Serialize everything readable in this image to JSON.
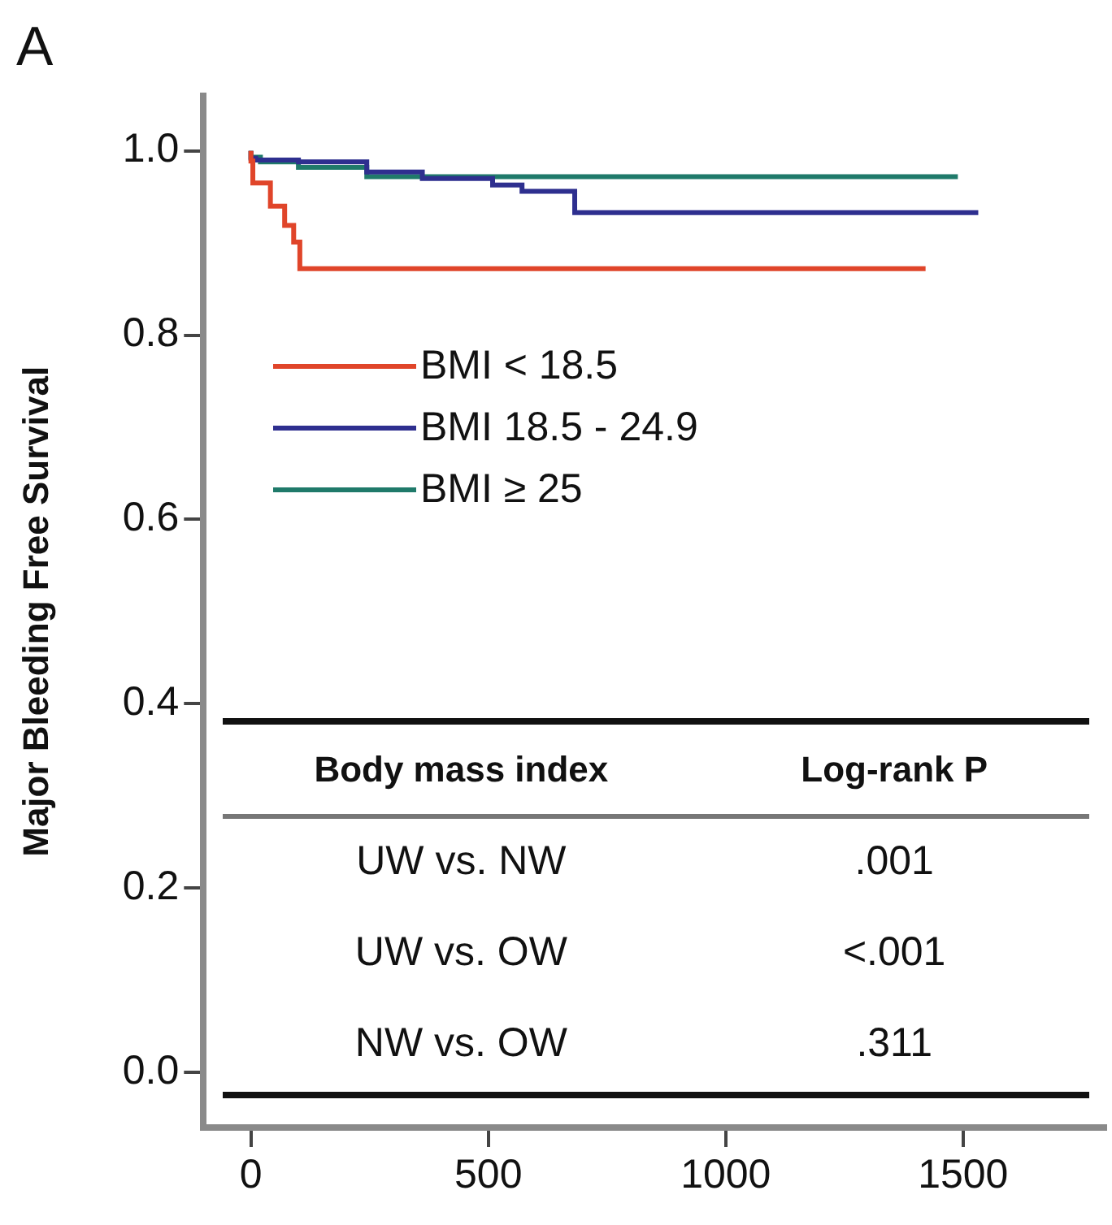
{
  "chart_data": {
    "type": "step",
    "title": "A",
    "ylabel": "Major Bleeding Free Survival",
    "series": [
      {
        "name": "BMI < 18.5",
        "color": "#e0452a",
        "x": [
          0,
          4,
          41,
          71,
          90,
          103,
          177,
          1421
        ],
        "values": [
          1.0,
          0.989,
          0.965,
          0.94,
          0.919,
          0.901,
          0.872,
          0.872
        ]
      },
      {
        "name": "BMI 18.5 - 24.9",
        "color": "#2e2f8f",
        "x": [
          0,
          10,
          100,
          244,
          361,
          509,
          571,
          682,
          780,
          1532
        ],
        "values": [
          1.0,
          0.992,
          0.99,
          0.988,
          0.977,
          0.97,
          0.963,
          0.956,
          0.933,
          0.933
        ]
      },
      {
        "name": "BMI ≥ 25",
        "color": "#1f7a6a",
        "x": [
          0,
          20,
          100,
          244,
          650,
          1489
        ],
        "values": [
          1.0,
          0.993,
          0.988,
          0.982,
          0.972,
          0.972
        ]
      }
    ],
    "xlim": [
      -100,
      1800
    ],
    "xticks": [
      0,
      500,
      1000,
      1500
    ],
    "ylim": [
      -0.06,
      1.06
    ],
    "yticks": [
      {
        "value": 0,
        "label": "0.0"
      },
      {
        "value": 0.2,
        "label": "0.2"
      },
      {
        "value": 0.4,
        "label": "0.4"
      },
      {
        "value": 0.6,
        "label": "0.6"
      },
      {
        "value": 0.8,
        "label": "0.8"
      },
      {
        "value": 1,
        "label": "1.0"
      }
    ],
    "legend": "left",
    "grid": false,
    "annotations": [
      "Body mass index",
      "Log-rank P",
      "UW vs. NW",
      ".001",
      "UW vs. OW",
      "<.001",
      "NW vs. OW",
      ".311"
    ]
  }
}
